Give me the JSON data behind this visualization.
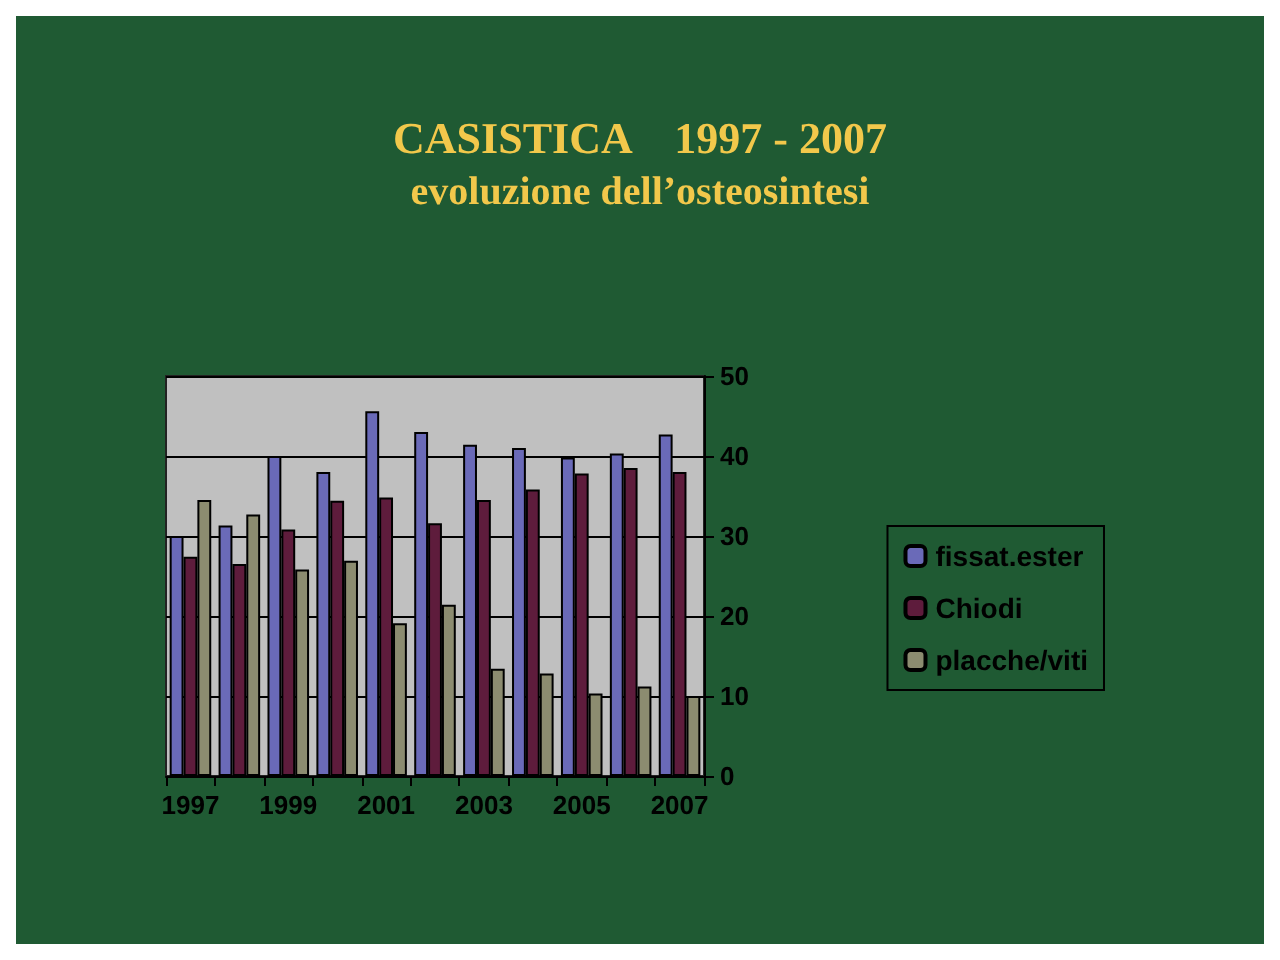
{
  "chart_data": {
    "type": "bar",
    "title": "CASISTICA    1997 - 2007",
    "subtitle": "evoluzione dell’osteosintesi",
    "categories": [
      "1997",
      null,
      "1999",
      null,
      "2001",
      null,
      "2003",
      null,
      "2005",
      null,
      "2007"
    ],
    "series": [
      {
        "name": "fissat.ester",
        "color": "#6a6ab8",
        "values": [
          30,
          31.3,
          40,
          38,
          45.6,
          43,
          41.4,
          41,
          39.8,
          40.3,
          42.7
        ]
      },
      {
        "name": "Chiodi",
        "color": "#5e1c3c",
        "values": [
          27.4,
          26.5,
          30.8,
          34.4,
          34.8,
          31.6,
          34.5,
          35.8,
          37.8,
          38.5,
          38
        ]
      },
      {
        "name": "placche/viti",
        "color": "#8c8c70",
        "values": [
          34.5,
          32.7,
          25.8,
          26.9,
          19.1,
          21.4,
          13.4,
          12.8,
          10.3,
          11.2,
          10
        ]
      }
    ],
    "ylim": [
      0,
      50
    ],
    "yticks": [
      0,
      10,
      20,
      30,
      40,
      50
    ],
    "grid": "y",
    "legend": "right"
  }
}
